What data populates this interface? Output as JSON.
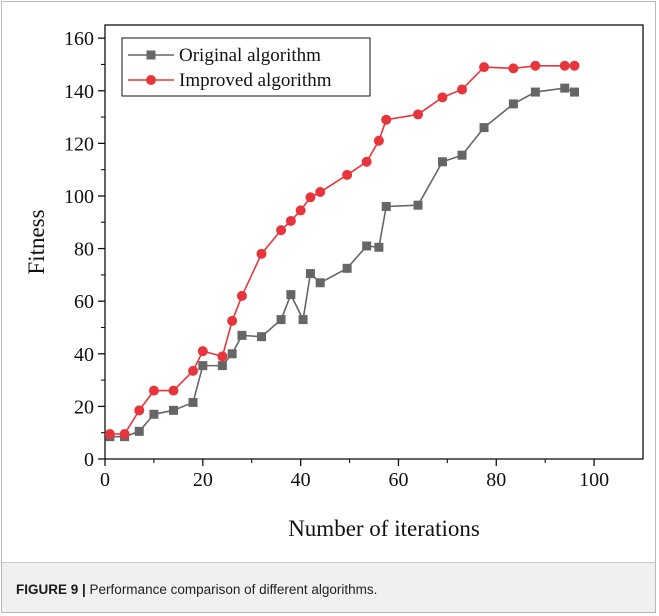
{
  "figure": {
    "caption_label": "FIGURE 9 |",
    "caption_text": " Performance comparison of different algorithms."
  },
  "chart_data": {
    "type": "line",
    "title": "",
    "xlabel": "Number of iterations",
    "ylabel": "Fitness",
    "xlim": [
      0,
      110
    ],
    "ylim": [
      0,
      165
    ],
    "xticks": [
      0,
      20,
      40,
      60,
      80,
      100
    ],
    "yticks": [
      0,
      20,
      40,
      60,
      80,
      100,
      120,
      140,
      160
    ],
    "grid": false,
    "legend_position": "top-left",
    "series": [
      {
        "name": "Original algorithm",
        "color": "#666666",
        "marker": "square",
        "x": [
          1,
          4,
          7,
          10,
          14,
          18,
          20,
          24,
          26,
          28,
          32,
          36,
          38,
          40.5,
          42,
          44,
          49.5,
          53.5,
          56,
          57.5,
          64,
          69,
          73,
          77.5,
          83.5,
          88,
          94,
          96
        ],
        "y": [
          8.5,
          8.5,
          10.5,
          17,
          18.5,
          21.5,
          35.5,
          35.5,
          40,
          47,
          46.5,
          53,
          62.5,
          53,
          70.5,
          67,
          72.5,
          81,
          80.5,
          96,
          96.5,
          113,
          115.5,
          126,
          135,
          139.5,
          141,
          139.5
        ]
      },
      {
        "name": "Improved algorithm",
        "color": "#e8353b",
        "marker": "circle",
        "x": [
          1,
          4,
          7,
          10,
          14,
          18,
          20,
          24,
          26,
          28,
          32,
          36,
          38,
          40,
          42,
          44,
          49.5,
          53.5,
          56,
          57.5,
          64,
          69,
          73,
          77.5,
          83.5,
          88,
          94,
          96
        ],
        "y": [
          9.5,
          9.5,
          18.5,
          26,
          26,
          33.5,
          41,
          39,
          52.5,
          62,
          78,
          87,
          90.5,
          94.5,
          99.5,
          101.5,
          108,
          113,
          121,
          129,
          131,
          137.5,
          140.5,
          149,
          148.5,
          149.5,
          149.5,
          149.5
        ]
      }
    ]
  }
}
